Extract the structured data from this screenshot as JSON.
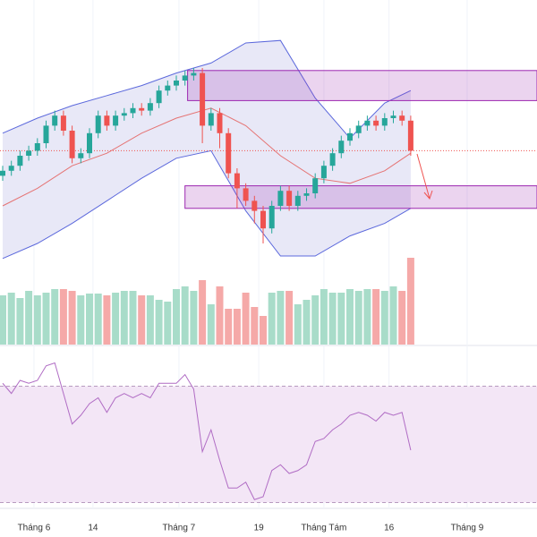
{
  "chart_data": {
    "type": "candlestick",
    "candles": [
      [
        37,
        41,
        35,
        39
      ],
      [
        39,
        43,
        37,
        41
      ],
      [
        41,
        47,
        39,
        45
      ],
      [
        45,
        49,
        43,
        47
      ],
      [
        47,
        52,
        45,
        50
      ],
      [
        50,
        59,
        48,
        57
      ],
      [
        57,
        63,
        55,
        61
      ],
      [
        61,
        63,
        53,
        55
      ],
      [
        55,
        57,
        42,
        44
      ],
      [
        44,
        48,
        42,
        46
      ],
      [
        46,
        56,
        44,
        54
      ],
      [
        54,
        63,
        52,
        61
      ],
      [
        61,
        63,
        55,
        57
      ],
      [
        57,
        63,
        55,
        61
      ],
      [
        61,
        64,
        59,
        62
      ],
      [
        62,
        66,
        60,
        64
      ],
      [
        64,
        66,
        61,
        63
      ],
      [
        63,
        68,
        61,
        66
      ],
      [
        66,
        73,
        64,
        71
      ],
      [
        71,
        75,
        69,
        73
      ],
      [
        73,
        77,
        71,
        75
      ],
      [
        75,
        79,
        73,
        77
      ],
      [
        77,
        80,
        75,
        78
      ],
      [
        78,
        80,
        50,
        57
      ],
      [
        57,
        64,
        55,
        62
      ],
      [
        62,
        64,
        48,
        54
      ],
      [
        54,
        56,
        36,
        38
      ],
      [
        38,
        40,
        24,
        32
      ],
      [
        32,
        34,
        25,
        27
      ],
      [
        27,
        29,
        18,
        23
      ],
      [
        23,
        25,
        10,
        16
      ],
      [
        16,
        27,
        14,
        25
      ],
      [
        25,
        33,
        23,
        31
      ],
      [
        31,
        33,
        23,
        25
      ],
      [
        25,
        31,
        23,
        29
      ],
      [
        29,
        32,
        27,
        30
      ],
      [
        30,
        38,
        28,
        36
      ],
      [
        36,
        43,
        34,
        41
      ],
      [
        41,
        48,
        39,
        46
      ],
      [
        46,
        53,
        44,
        51
      ],
      [
        51,
        56,
        49,
        54
      ],
      [
        54,
        59,
        52,
        57
      ],
      [
        57,
        61,
        55,
        59
      ],
      [
        59,
        61,
        55,
        57
      ],
      [
        57,
        62,
        55,
        60
      ],
      [
        60,
        63,
        58,
        61
      ],
      [
        61,
        63,
        57,
        59
      ],
      [
        59,
        61,
        45,
        47
      ]
    ],
    "volume": [
      55,
      58,
      52,
      60,
      55,
      58,
      62,
      62,
      60,
      55,
      57,
      57,
      55,
      58,
      60,
      60,
      55,
      55,
      50,
      48,
      62,
      65,
      60,
      72,
      45,
      65,
      40,
      40,
      58,
      42,
      32,
      58,
      60,
      60,
      45,
      50,
      55,
      62,
      58,
      58,
      62,
      60,
      62,
      62,
      60,
      65,
      60,
      97
    ],
    "rsi": [
      71,
      67.5,
      72,
      71,
      72,
      77,
      78,
      67.5,
      57,
      60,
      64,
      66,
      61,
      66,
      67.5,
      66,
      67.5,
      66,
      71,
      71,
      71,
      74,
      69,
      47.5,
      55,
      44.5,
      35,
      35,
      37,
      31,
      32,
      41,
      43,
      40,
      41,
      43,
      51,
      52,
      55,
      57,
      60,
      61,
      60,
      58,
      61,
      60,
      61,
      48
    ],
    "bands": {
      "x": [
        0,
        4,
        8,
        12,
        16,
        20,
        24,
        28,
        32,
        36,
        40,
        44,
        47
      ],
      "upper": [
        54,
        60,
        65,
        69,
        73,
        78,
        82,
        90,
        91,
        68,
        52,
        66,
        71
      ],
      "middle": [
        25,
        32,
        41,
        46,
        54,
        60,
        64,
        57,
        45,
        36,
        34,
        39,
        46
      ],
      "lower": [
        4,
        10,
        18,
        27,
        36,
        44,
        47,
        23,
        5,
        5,
        13,
        18,
        24
      ]
    },
    "zones": [
      {
        "from": 21.3,
        "low": 67,
        "high": 79
      },
      {
        "from": 21,
        "low": 24,
        "high": 33
      }
    ],
    "last_price": 47,
    "rsi_levels": [
      30,
      70
    ],
    "xticks": [
      {
        "value": 3.6,
        "label": "Tháng 6"
      },
      {
        "value": 10.4,
        "label": "14"
      },
      {
        "value": 20.3,
        "label": "Tháng 7"
      },
      {
        "value": 29.5,
        "label": "19"
      },
      {
        "value": 37,
        "label": "Tháng Tám"
      },
      {
        "value": 44.5,
        "label": "16"
      },
      {
        "value": 53.5,
        "label": "Tháng 9"
      }
    ],
    "ylim": [
      0,
      100
    ],
    "vlim": [
      0,
      100
    ],
    "rsi_ylim": [
      0,
      100
    ],
    "colors": {
      "up": "#26a69a",
      "down": "#ef5350",
      "up_volume": "#a8dcc9",
      "down_volume": "#f5a9a8",
      "band": "#5b68dc",
      "middle": "#e57373",
      "zone": "#9c27b0",
      "rsi": "#b06cc4"
    }
  }
}
